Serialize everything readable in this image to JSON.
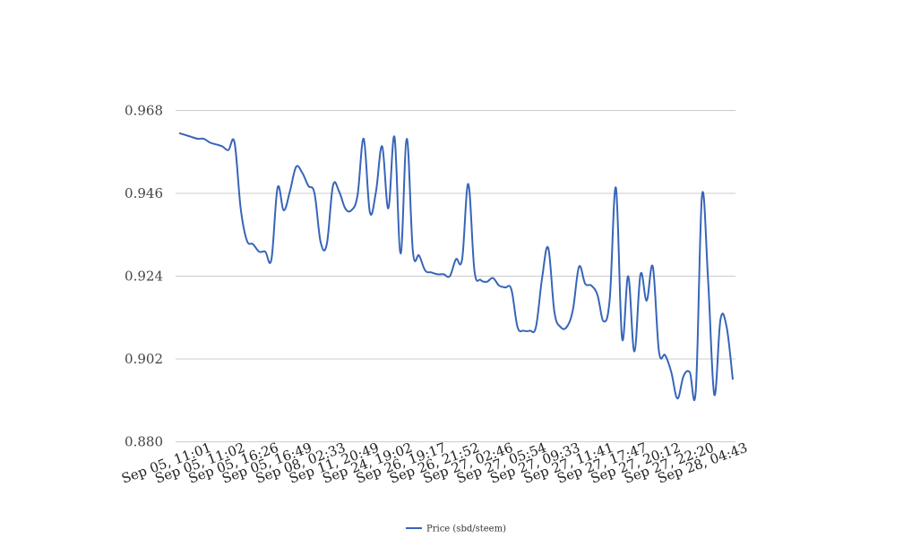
{
  "chart_data": {
    "type": "line",
    "title": "",
    "xlabel": "",
    "ylabel": "",
    "ylim": [
      0.88,
      0.968
    ],
    "yticks": [
      "0.880",
      "0.902",
      "0.924",
      "0.946",
      "0.968"
    ],
    "xtick_labels": [
      "Sep 05, 11:01",
      "Sep 05, 11:02",
      "Sep 05, 16:26",
      "Sep 05, 16:49",
      "Sep 08, 02:33",
      "Sep 11, 20:49",
      "Sep 24, 19:02",
      "Sep 26, 19:17",
      "Sep 26, 21:52",
      "Sep 27, 02:46",
      "Sep 27, 05:54",
      "Sep 27, 09:33",
      "Sep 27, 11:41",
      "Sep 27, 17:47",
      "Sep 27, 20:12",
      "Sep 27, 22:20",
      "Sep 28, 04:43"
    ],
    "grid": true,
    "legend_position": "bottom",
    "series": [
      {
        "name": "Price (sbd/steem)",
        "color": "#3765b8",
        "values": [
          0.962,
          0.9615,
          0.961,
          0.9605,
          0.9605,
          0.9595,
          0.959,
          0.9585,
          0.9575,
          0.9595,
          0.942,
          0.9335,
          0.9325,
          0.9305,
          0.9305,
          0.9285,
          0.9475,
          0.9415,
          0.9465,
          0.953,
          0.9515,
          0.948,
          0.946,
          0.933,
          0.9325,
          0.948,
          0.9465,
          0.942,
          0.9415,
          0.9455,
          0.9605,
          0.941,
          0.9465,
          0.9585,
          0.942,
          0.961,
          0.93,
          0.9605,
          0.9305,
          0.9295,
          0.9255,
          0.925,
          0.9245,
          0.9245,
          0.924,
          0.9285,
          0.9285,
          0.9485,
          0.9255,
          0.923,
          0.9225,
          0.9235,
          0.9215,
          0.921,
          0.9205,
          0.9105,
          0.9095,
          0.9095,
          0.9105,
          0.9235,
          0.9315,
          0.9145,
          0.9105,
          0.9105,
          0.915,
          0.9265,
          0.922,
          0.9215,
          0.919,
          0.912,
          0.918,
          0.9475,
          0.9075,
          0.924,
          0.904,
          0.9245,
          0.9175,
          0.9265,
          0.904,
          0.903,
          0.8985,
          0.8915,
          0.8975,
          0.8985,
          0.894,
          0.9455,
          0.9225,
          0.8925,
          0.9125,
          0.9105,
          0.8965
        ]
      }
    ]
  }
}
